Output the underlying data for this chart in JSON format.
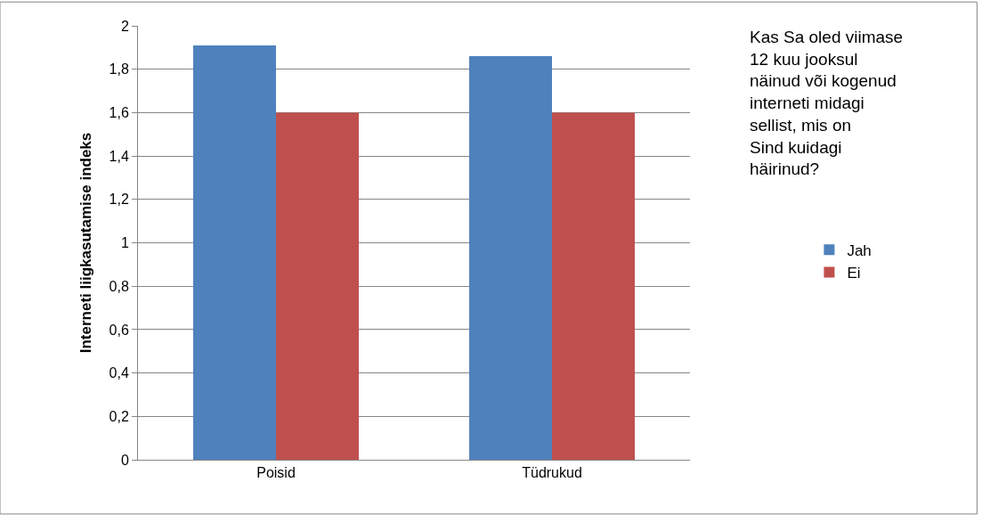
{
  "chart_data": {
    "type": "bar",
    "ylabel": "Interneti liigkasutamise indeks",
    "legend_title": "Kas Sa oled viimase 12 kuu jooksul näinud või kogenud interneti midagi sellist, mis on Sind kuidagi häirinud?",
    "categories": [
      "Poisid",
      "Tüdrukud"
    ],
    "series": [
      {
        "name": "Jah",
        "color": "#4f81bd",
        "values": [
          1.91,
          1.86
        ]
      },
      {
        "name": "Ei",
        "color": "#c0504d",
        "values": [
          1.6,
          1.6
        ]
      }
    ],
    "ylim": [
      0,
      2
    ],
    "yticks": [
      0,
      {
        "value": 0.2,
        "label": "0,2"
      },
      {
        "value": 0.4,
        "label": "0,4"
      },
      {
        "value": 0.6,
        "label": "0,6"
      },
      {
        "value": 0.8,
        "label": "0,8"
      },
      1,
      {
        "value": 1.2,
        "label": "1,2"
      },
      {
        "value": 1.4,
        "label": "1,4"
      },
      {
        "value": 1.6,
        "label": "1,6"
      },
      {
        "value": 1.8,
        "label": "1,8"
      },
      2
    ],
    "grid": "y",
    "legend": "right"
  }
}
